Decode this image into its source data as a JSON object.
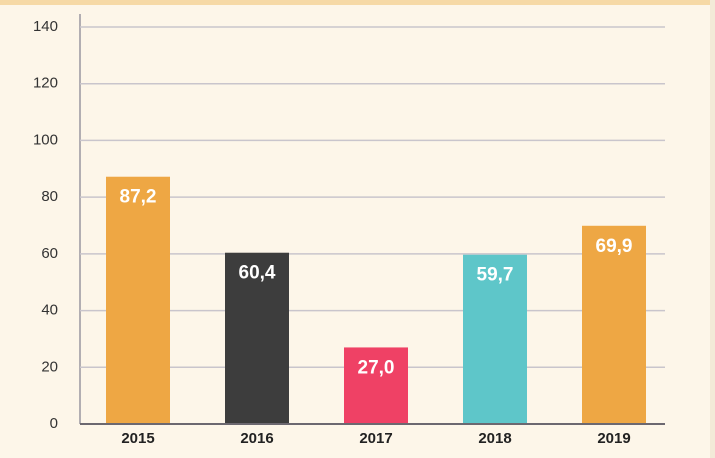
{
  "chart_data": {
    "type": "bar",
    "categories": [
      "2015",
      "2016",
      "2017",
      "2018",
      "2019"
    ],
    "values": [
      87.2,
      60.4,
      27.0,
      59.7,
      69.9
    ],
    "value_labels": [
      "87,2",
      "60,4",
      "27,0",
      "59,7",
      "69,9"
    ],
    "colors": [
      "#eea744",
      "#3d3d3d",
      "#ef4165",
      "#5ec6c9",
      "#eea744"
    ],
    "ylim": [
      0,
      140
    ],
    "yticks": [
      0,
      20,
      40,
      60,
      80,
      100,
      120,
      140
    ],
    "grid": true
  }
}
